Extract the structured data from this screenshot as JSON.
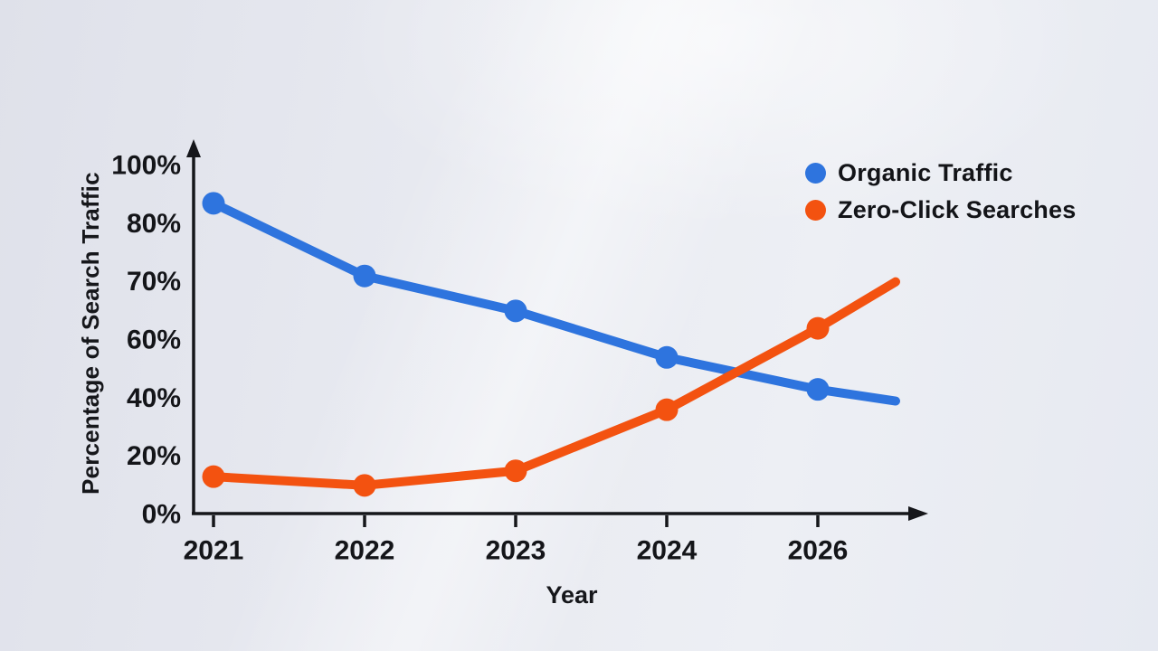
{
  "colors": {
    "axis": "#15161a",
    "text": "#141519",
    "organic_blue": "#2e74de",
    "zero_click_orange": "#f35210"
  },
  "chart_data": {
    "type": "line",
    "title": "",
    "xlabel": "Year",
    "ylabel": "Percentage of Search Traffic",
    "categories": [
      "2021",
      "2022",
      "2023",
      "2024",
      "2026"
    ],
    "y_ticks": [
      {
        "label": "100%",
        "value": 100
      },
      {
        "label": "80%",
        "value": 80
      },
      {
        "label": "70%",
        "value": 70
      },
      {
        "label": "60%",
        "value": 60
      },
      {
        "label": "40%",
        "value": 40
      },
      {
        "label": "20%",
        "value": 20
      },
      {
        "label": "0%",
        "value": 0
      }
    ],
    "ylim": [
      0,
      100
    ],
    "grid": false,
    "legend_position": "top-right",
    "series": [
      {
        "name": "Organic Traffic",
        "color": "#2e74de",
        "values": [
          87,
          71,
          65,
          54,
          43
        ],
        "tail_value": 39
      },
      {
        "name": "Zero-Click Searches",
        "color": "#f35210",
        "values": [
          13,
          10,
          15,
          36,
          62
        ],
        "tail_value": 70
      }
    ]
  }
}
